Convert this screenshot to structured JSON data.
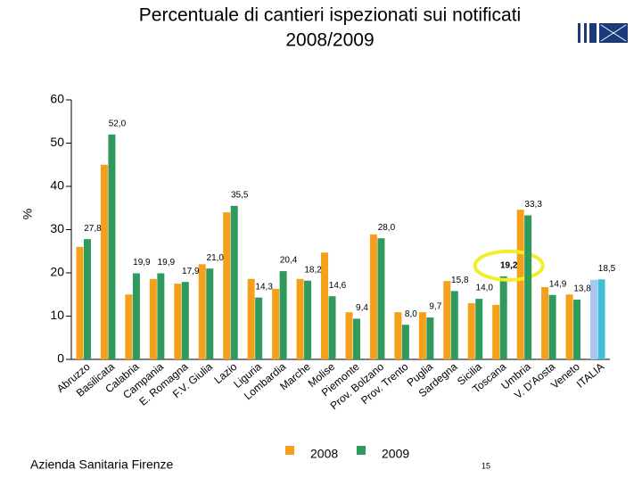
{
  "chart_data": {
    "type": "bar",
    "title": "Percentuale di cantieri ispezionati sui notificati",
    "subtitle": "2008/2009",
    "y_label": "%",
    "footer_left": "Azienda Sanitaria Firenze",
    "page_number": "15",
    "categories": [
      "Abruzzo",
      "Basilicata",
      "Calabria",
      "Campania",
      "E. Romagna",
      "F.V. Giulia",
      "Lazio",
      "Liguria",
      "Lombardia",
      "Marche",
      "Molise",
      "Piemonte",
      "Prov. Bolzano",
      "Prov. Trento",
      "Puglia",
      "Sardegna",
      "Sicilia",
      "Toscana",
      "Umbria",
      "V. D'Aosta",
      "Veneto",
      "ITALIA"
    ],
    "series": [
      {
        "name": "2008",
        "color": "#f5a01a",
        "colors": [
          "#f5a01a",
          "#f5a01a",
          "#f5a01a",
          "#f5a01a",
          "#f5a01a",
          "#f5a01a",
          "#f5a01a",
          "#f5a01a",
          "#f5a01a",
          "#f5a01a",
          "#f5a01a",
          "#f5a01a",
          "#f5a01a",
          "#f5a01a",
          "#f5a01a",
          "#f5a01a",
          "#f5a01a",
          "#f5a01a",
          "#f5a01a",
          "#f5a01a",
          "#f5a01a",
          "#a9c6ee"
        ],
        "values": [
          26.0,
          45.0,
          15.0,
          18.6,
          17.5,
          22.0,
          34.0,
          18.6,
          16.3,
          18.6,
          24.7,
          10.9,
          28.9,
          10.9,
          10.9,
          18.1,
          13.0,
          12.6,
          34.6,
          16.7,
          15.0,
          18.4
        ]
      },
      {
        "name": "2009",
        "color": "#2f9a5c",
        "colors": [
          "#2f9a5c",
          "#2f9a5c",
          "#2f9a5c",
          "#2f9a5c",
          "#2f9a5c",
          "#2f9a5c",
          "#2f9a5c",
          "#2f9a5c",
          "#2f9a5c",
          "#2f9a5c",
          "#2f9a5c",
          "#2f9a5c",
          "#2f9a5c",
          "#2f9a5c",
          "#2f9a5c",
          "#2f9a5c",
          "#2f9a5c",
          "#2f9a5c",
          "#2f9a5c",
          "#2f9a5c",
          "#2f9a5c",
          "#3dbfd6"
        ],
        "values": [
          27.8,
          52.0,
          19.9,
          19.9,
          17.9,
          21.0,
          35.5,
          14.3,
          20.4,
          18.2,
          14.6,
          9.4,
          28.0,
          8.0,
          9.7,
          15.8,
          14.0,
          19.2,
          33.3,
          14.9,
          13.8,
          18.5
        ],
        "value_labels": [
          "27,8",
          "52,0",
          "19,9",
          "19,9",
          "17,9",
          "21,0",
          "35,5",
          "14,3",
          "20,4",
          "18,2",
          "14,6",
          "9,4",
          "28,0",
          "8,0",
          "9,7",
          "15,8",
          "14,0",
          "19,2",
          "33,3",
          "14,9",
          "13,8",
          "18,5"
        ]
      }
    ],
    "ylim": [
      0,
      60
    ],
    "yticks": [
      0,
      10,
      20,
      30,
      40,
      50,
      60
    ],
    "grid": false
  }
}
